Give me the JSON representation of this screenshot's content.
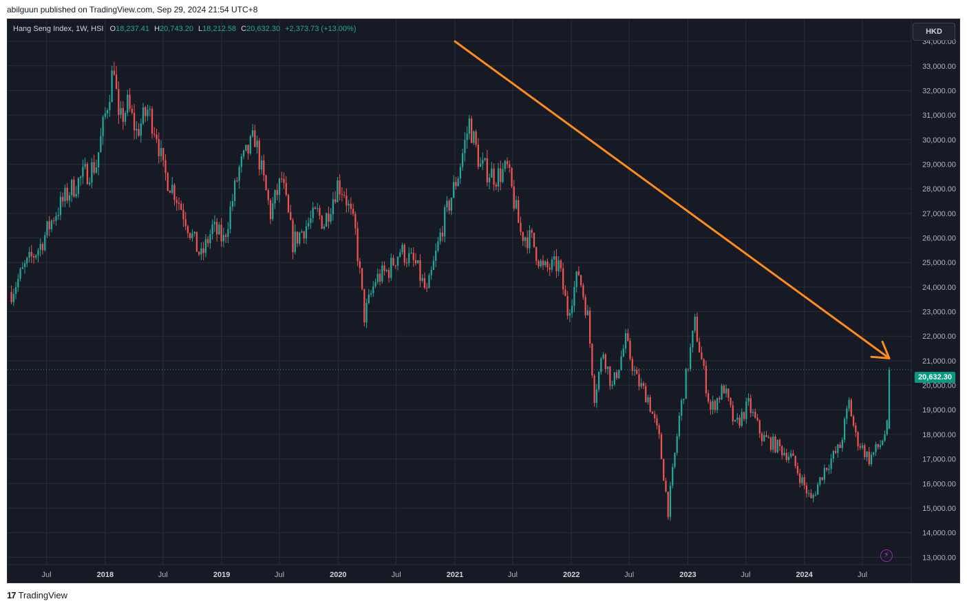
{
  "header": {
    "publish_line": "abilguun published on TradingView.com, Sep 29, 2024 21:54 UTC+8"
  },
  "legend": {
    "symbol": "Hang Seng Index, 1W, HSI",
    "o_key": "O",
    "o_val": "18,237.41",
    "h_key": "H",
    "h_val": "20,743.20",
    "l_key": "L",
    "l_val": "18,212.58",
    "c_key": "C",
    "c_val": "20,632.30",
    "change": "+2,373.73 (+13.00%)"
  },
  "toolbar": {
    "currency": "HKD"
  },
  "price_label": "20,632.30",
  "footer": {
    "brand": "TradingView",
    "logo": "17"
  },
  "colors": {
    "up": "#26a69a",
    "down": "#ef5350",
    "background": "#161a25",
    "arrow": "#ff8c1a",
    "grid": "#2a2e39"
  },
  "icons": {
    "flash": "lightning-icon"
  },
  "chart_data": {
    "type": "candlestick",
    "title": "Hang Seng Index, 1W, HSI",
    "interval": "1W",
    "currency": "HKD",
    "ylim": [
      12700,
      34900
    ],
    "y_ticks": [
      13000,
      14000,
      15000,
      16000,
      17000,
      18000,
      19000,
      20000,
      21000,
      22000,
      23000,
      24000,
      25000,
      26000,
      27000,
      28000,
      29000,
      30000,
      31000,
      32000,
      33000,
      34000
    ],
    "y_tick_labels": [
      "13,000.00",
      "14,000.00",
      "15,000.00",
      "16,000.00",
      "17,000.00",
      "18,000.00",
      "19,000.00",
      "20,000.00",
      "21,000.00",
      "22,000.00",
      "23,000.00",
      "24,000.00",
      "25,000.00",
      "26,000.00",
      "27,000.00",
      "28,000.00",
      "29,000.00",
      "30,000.00",
      "31,000.00",
      "32,000.00",
      "33,000.00",
      "34,000.00"
    ],
    "x_ticks": [
      {
        "label": "Jul",
        "date": "2017-07-01",
        "bold": false
      },
      {
        "label": "2018",
        "date": "2018-01-01",
        "bold": true
      },
      {
        "label": "Jul",
        "date": "2018-07-01",
        "bold": false
      },
      {
        "label": "2019",
        "date": "2019-01-01",
        "bold": true
      },
      {
        "label": "Jul",
        "date": "2019-07-01",
        "bold": false
      },
      {
        "label": "2020",
        "date": "2020-01-01",
        "bold": true
      },
      {
        "label": "Jul",
        "date": "2020-07-01",
        "bold": false
      },
      {
        "label": "2021",
        "date": "2021-01-01",
        "bold": true
      },
      {
        "label": "Jul",
        "date": "2021-07-01",
        "bold": false
      },
      {
        "label": "2022",
        "date": "2022-01-01",
        "bold": true
      },
      {
        "label": "Jul",
        "date": "2022-07-01",
        "bold": false
      },
      {
        "label": "2023",
        "date": "2023-01-01",
        "bold": true
      },
      {
        "label": "Jul",
        "date": "2023-07-01",
        "bold": false
      },
      {
        "label": "2024",
        "date": "2024-01-01",
        "bold": true
      },
      {
        "label": "Jul",
        "date": "2024-07-01",
        "bold": false
      }
    ],
    "x_range": [
      "2017-03-01",
      "2024-12-01"
    ],
    "anchor_closes": [
      [
        "2017-03-13",
        23800
      ],
      [
        "2017-04-24",
        24800
      ],
      [
        "2017-06-12",
        25700
      ],
      [
        "2017-07-24",
        26900
      ],
      [
        "2017-09-11",
        27900
      ],
      [
        "2017-10-30",
        28600
      ],
      [
        "2017-12-04",
        29000
      ],
      [
        "2018-01-08",
        31500
      ],
      [
        "2018-01-29",
        33100
      ],
      [
        "2018-02-12",
        30600
      ],
      [
        "2018-03-12",
        31400
      ],
      [
        "2018-04-09",
        30300
      ],
      [
        "2018-05-14",
        31200
      ],
      [
        "2018-06-11",
        30300
      ],
      [
        "2018-07-02",
        28700
      ],
      [
        "2018-08-06",
        27900
      ],
      [
        "2018-09-10",
        26800
      ],
      [
        "2018-10-08",
        25800
      ],
      [
        "2018-10-29",
        25200
      ],
      [
        "2018-12-03",
        26400
      ],
      [
        "2019-01-07",
        25900
      ],
      [
        "2019-02-25",
        28800
      ],
      [
        "2019-04-15",
        30100
      ],
      [
        "2019-05-06",
        28700
      ],
      [
        "2019-06-03",
        27000
      ],
      [
        "2019-07-08",
        28400
      ],
      [
        "2019-08-12",
        25800
      ],
      [
        "2019-09-16",
        26400
      ],
      [
        "2019-10-28",
        27000
      ],
      [
        "2019-11-18",
        26600
      ],
      [
        "2019-12-30",
        28200
      ],
      [
        "2020-01-20",
        27900
      ],
      [
        "2020-02-24",
        26200
      ],
      [
        "2020-03-23",
        22800
      ],
      [
        "2020-04-27",
        24300
      ],
      [
        "2020-06-08",
        24700
      ],
      [
        "2020-07-13",
        25500
      ],
      [
        "2020-08-31",
        24900
      ],
      [
        "2020-10-05",
        23700
      ],
      [
        "2020-11-23",
        26500
      ],
      [
        "2021-01-11",
        28600
      ],
      [
        "2021-02-15",
        30700
      ],
      [
        "2021-03-22",
        28900
      ],
      [
        "2021-05-10",
        28500
      ],
      [
        "2021-06-14",
        28800
      ],
      [
        "2021-07-26",
        26200
      ],
      [
        "2021-08-30",
        25900
      ],
      [
        "2021-10-04",
        24700
      ],
      [
        "2021-11-22",
        24900
      ],
      [
        "2021-12-20",
        23000
      ],
      [
        "2022-01-24",
        24600
      ],
      [
        "2022-02-21",
        22800
      ],
      [
        "2022-03-14",
        19600
      ],
      [
        "2022-04-11",
        21400
      ],
      [
        "2022-05-09",
        19900
      ],
      [
        "2022-06-20",
        21800
      ],
      [
        "2022-07-25",
        20200
      ],
      [
        "2022-08-29",
        19500
      ],
      [
        "2022-10-03",
        17800
      ],
      [
        "2022-10-31",
        14900
      ],
      [
        "2022-12-05",
        18700
      ],
      [
        "2023-01-23",
        22500
      ],
      [
        "2023-03-13",
        19000
      ],
      [
        "2023-04-24",
        19900
      ],
      [
        "2023-05-29",
        18300
      ],
      [
        "2023-07-10",
        19200
      ],
      [
        "2023-08-21",
        17900
      ],
      [
        "2023-10-09",
        17500
      ],
      [
        "2023-11-20",
        17100
      ],
      [
        "2024-01-22",
        15300
      ],
      [
        "2024-03-04",
        16600
      ],
      [
        "2024-04-22",
        17500
      ],
      [
        "2024-05-20",
        19300
      ],
      [
        "2024-06-10",
        17900
      ],
      [
        "2024-07-22",
        17000
      ],
      [
        "2024-08-26",
        17600
      ],
      [
        "2024-09-16",
        18258
      ],
      [
        "2024-09-23",
        20632
      ]
    ],
    "last_bar": {
      "date": "2024-09-23",
      "open": 18237.41,
      "high": 20743.2,
      "low": 18212.58,
      "close": 20632.3,
      "change": 2373.73,
      "change_pct": 13.0
    },
    "last_price_line": 20632.3,
    "drawing": {
      "type": "trend-arrow",
      "from": {
        "date": "2021-01-01",
        "price": 34000
      },
      "to": {
        "date": "2024-09-23",
        "price": 21100
      },
      "color": "#ff8c1a"
    }
  }
}
